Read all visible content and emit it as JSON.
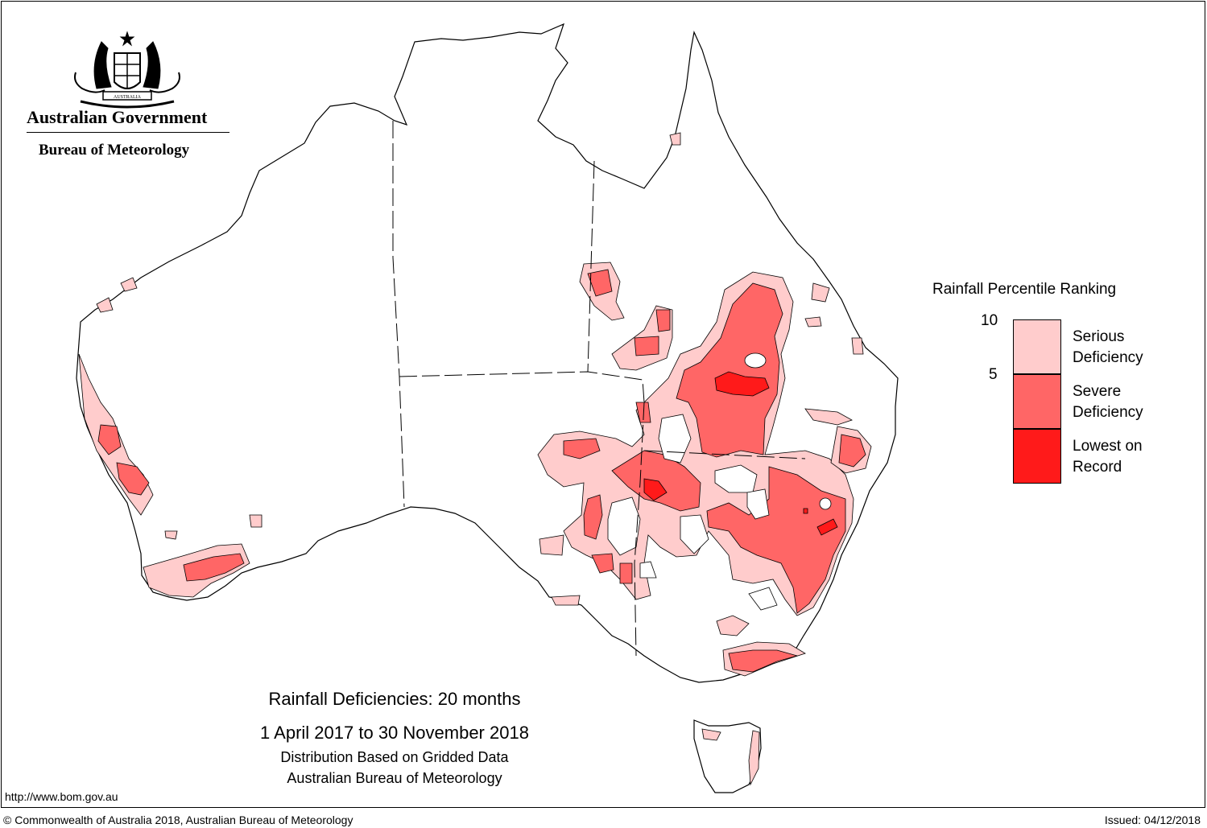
{
  "header": {
    "org_name": "Australian Government",
    "bureau_name": "Bureau of Meteorology",
    "crest_text": "AUSTRALIA"
  },
  "map": {
    "title": "Rainfall Deficiencies: 20 months",
    "period": "1 April 2017 to 30 November 2018",
    "subtitle_1": "Distribution Based on Gridded Data",
    "subtitle_2": "Australian Bureau of Meteorology",
    "coastline_color": "#000000",
    "border_style": "dashed"
  },
  "legend": {
    "title": "Rainfall Percentile Ranking",
    "ticks": [
      "10",
      "5"
    ],
    "categories": [
      {
        "line1": "Serious",
        "line2": "Deficiency",
        "color": "#ffcccc"
      },
      {
        "line1": "Severe",
        "line2": "Deficiency",
        "color": "#ff6666"
      },
      {
        "line1": "Lowest on",
        "line2": "Record",
        "color": "#ff1a1a"
      }
    ]
  },
  "footer": {
    "url": "http://www.bom.gov.au",
    "copyright": "© Commonwealth of Australia 2018, Australian Bureau of Meteorology",
    "issued": "Issued: 04/12/2018"
  }
}
